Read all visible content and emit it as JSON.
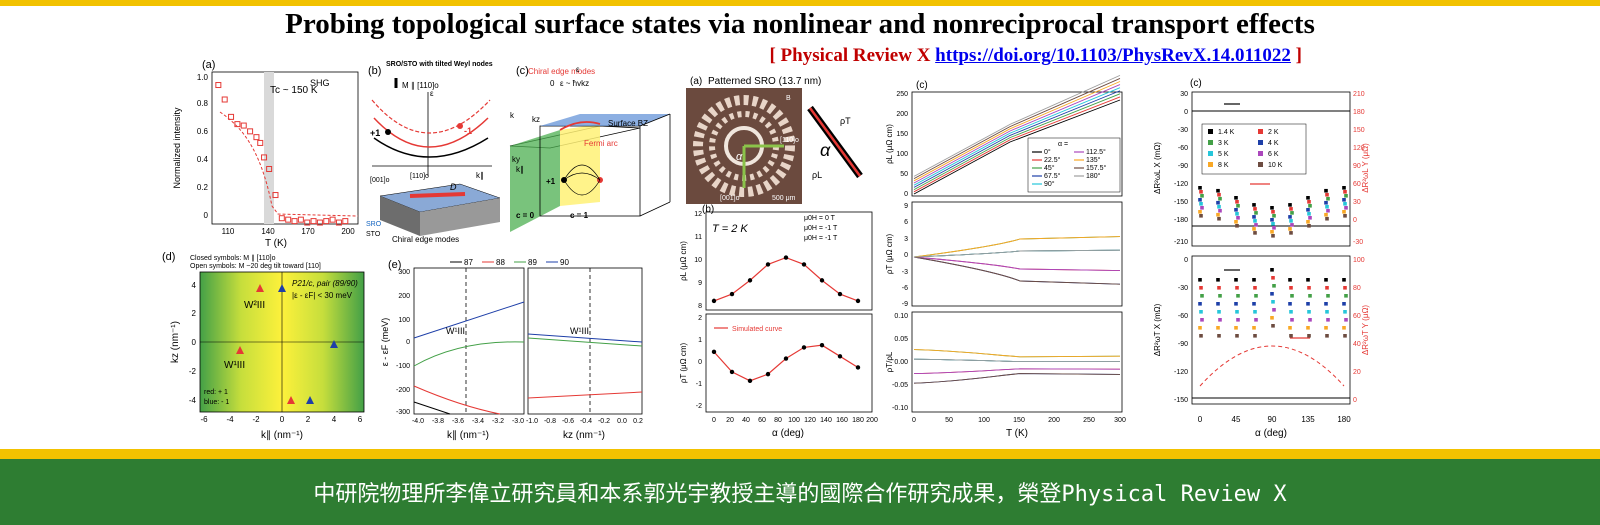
{
  "header": {
    "title": "Probing topological surface states via nonlinear and nonreciprocal transport effects",
    "journal": "[ Physical Review X",
    "doi_link": "https://doi.org/10.1103/PhysRevX.14.011022",
    "close_bracket": "]"
  },
  "footer": {
    "caption": "中研院物理所李偉立研究員和本系郭光宇教授主導的國際合作研究成果，榮登Physical Review X"
  },
  "colors": {
    "accent_yellow": "#f2c200",
    "footer_green": "#2e7d32",
    "citation_red": "#c00000",
    "link_blue": "#0000ee"
  },
  "figure": {
    "panel_a1": {
      "label": "(a)",
      "tag": "SHG",
      "tc": "Tc ~ 150 K",
      "ylabel": "Normalized intensity",
      "xlabel": "T (K)",
      "yticks": [
        "0",
        "0.2",
        "0.4",
        "0.6",
        "0.8",
        "1.0"
      ],
      "xticks": [
        "110",
        "140",
        "170",
        "200"
      ],
      "chart_data": {
        "type": "scatter",
        "xlabel": "T (K)",
        "ylabel": "Normalized intensity",
        "xlim": [
          95,
          210
        ],
        "ylim": [
          0,
          1.05
        ],
        "x": [
          100,
          105,
          110,
          115,
          120,
          125,
          130,
          133,
          136,
          140,
          145,
          150,
          155,
          160,
          165,
          170,
          175,
          180,
          185,
          190,
          195,
          200
        ],
        "y": [
          0.96,
          0.86,
          0.74,
          0.69,
          0.68,
          0.64,
          0.6,
          0.56,
          0.46,
          0.38,
          0.2,
          0.04,
          0.03,
          0.02,
          0.03,
          0.01,
          0.02,
          0.01,
          0.02,
          0.03,
          0.01,
          0.02
        ]
      }
    },
    "panel_b1": {
      "label": "(b)",
      "heading": "SRO/STO with tilted Weyl nodes",
      "m_dir": "M ∥ [110]o",
      "e_label": "ε",
      "k_label": "k∥",
      "plus_one": "+1",
      "minus_one": "-1",
      "dir1": "[001]o",
      "dir2": "[110]o",
      "d_label": "D",
      "sro": "SRO",
      "sto": "STO",
      "edge_modes": "Chiral edge modes"
    },
    "panel_c1": {
      "label": "(c)",
      "title": "Chiral edge modes",
      "dispersion": "ε ~ ħvkz",
      "e_axis": "ε",
      "zero": "0",
      "ky": "ky",
      "kz": "kz",
      "k": "k",
      "kpar": "k∥",
      "surface_bz": "Surface BZ",
      "fermi_arc": "Fermi arc",
      "plus_one": "+1",
      "c0": "c = 0",
      "c1": "c = 1"
    },
    "panel_d1": {
      "label": "(d)",
      "legend1": "Closed symbols: M ∥ [110]o",
      "legend2": "Open symbols: M ~20 deg tilt toward [110]",
      "pair_text": "P21/c, pair (89/90)",
      "window": "|ε - εF| < 30 meV",
      "w2": "W²III",
      "w1": "W¹III",
      "red_label": "red: + 1",
      "blue_label": "blue: - 1",
      "xlabel": "k∥ (nm⁻¹)",
      "ylabel": "kz (nm⁻¹)",
      "xticks": [
        "-6",
        "-4",
        "-2",
        "0",
        "2",
        "4",
        "6"
      ],
      "yticks": [
        "4",
        "2",
        "0",
        "-2",
        "-4"
      ]
    },
    "panel_e1": {
      "label": "(e)",
      "legend": [
        "87",
        "88",
        "89",
        "90"
      ],
      "legend_colors": [
        "#000000",
        "#e53935",
        "#43a047",
        "#1e3fa8"
      ],
      "ylabel": "ε - εF (meV)",
      "xlabel_left": "k∥ (nm⁻¹)",
      "xlabel_right": "kz (nm⁻¹)",
      "yticks": [
        "300",
        "200",
        "100",
        "0",
        "-100",
        "-200",
        "-300"
      ],
      "xticks_left": [
        "-4.0",
        "-3.8",
        "-3.6",
        "-3.4",
        "-3.2",
        "-3.0"
      ],
      "xticks_right": [
        "-1.0",
        "-0.8",
        "-0.6",
        "-0.4",
        "-0.2",
        "0.0",
        "0.2"
      ],
      "w_label": "W¹III"
    },
    "panel_a2": {
      "label": "(a)",
      "title": "Patterned SRO (13.7 nm)",
      "b_label": "B",
      "alpha": "α",
      "dir110": "[110]o",
      "dir001": "[001]o",
      "scale": "500 μm",
      "rho_t": "ρT",
      "rho_l": "ρL"
    },
    "panel_b2": {
      "label": "(b)",
      "temp": "T = 2 K",
      "legend": [
        "μ0H = 0 T",
        "μ0H = -1 T",
        "μ0H = -1 T"
      ],
      "ylabel_top": "ρL (μΩ cm)",
      "ylabel_bottom": "ρT (μΩ cm)",
      "simulated": "Simulated curve",
      "xlabel": "α (deg)",
      "yticks_top": [
        "12",
        "11",
        "10",
        "9",
        "8"
      ],
      "yticks_bottom": [
        "2",
        "1",
        "0",
        "-1",
        "-2"
      ],
      "xticks": [
        "0",
        "20",
        "40",
        "60",
        "80",
        "100",
        "120",
        "140",
        "160",
        "180",
        "200"
      ],
      "chart_data": {
        "type": "line",
        "xlabel": "α (deg)",
        "xlim": [
          -10,
          200
        ],
        "series": [
          {
            "name": "Simulated curve",
            "x": [
              0,
              22.5,
              45,
              67.5,
              90,
              112.5,
              135,
              157.5,
              180
            ],
            "y_top": [
              8.4,
              8.7,
              9.3,
              10.0,
              10.3,
              10.0,
              9.3,
              8.7,
              8.4
            ],
            "y_bottom": [
              0.5,
              -0.4,
              -0.8,
              -0.5,
              0.2,
              0.7,
              0.8,
              0.3,
              -0.2
            ]
          }
        ]
      }
    },
    "panel_c2": {
      "label": "(c)",
      "xlabel": "T (K)",
      "ylabel_top": "ρL (μΩ cm)",
      "ylabel_mid": "ρT (μΩ cm)",
      "ylabel_bot": "ρT/ρL",
      "yticks_top": [
        "250",
        "200",
        "150",
        "100",
        "50",
        "0"
      ],
      "yticks_mid": [
        "9",
        "6",
        "3",
        "0",
        "-3",
        "-6",
        "-9"
      ],
      "yticks_bot": [
        "0.10",
        "0.05",
        "0.00",
        "-0.05",
        "-0.10"
      ],
      "xticks": [
        "0",
        "50",
        "100",
        "150",
        "200",
        "250",
        "300"
      ],
      "legend_title": "α =",
      "legend_items": [
        "0°",
        "22.5°",
        "45°",
        "67.5°",
        "90°",
        "112.5°",
        "135°",
        "157.5°",
        "180°"
      ],
      "legend_colors": [
        "#000000",
        "#e53935",
        "#43a047",
        "#1e3fa8",
        "#26c6da",
        "#ab47bc",
        "#f9a825",
        "#6d4c41",
        "#9e9e9e"
      ]
    },
    "panel_c3": {
      "label": "(c)",
      "xlabel": "α (deg)",
      "ylabel_left_top": "ΔR²ωL X (mΩ)",
      "ylabel_right_top": "ΔR²ωL Y (μΩ)",
      "ylabel_left_bot": "ΔR²ωT X (mΩ)",
      "ylabel_right_bot": "ΔR²ωT Y (μΩ)",
      "yticks_left_top": [
        "30",
        "0",
        "-30",
        "-60",
        "-90",
        "-120",
        "-150",
        "-180",
        "-210"
      ],
      "yticks_right_top": [
        "210",
        "180",
        "150",
        "120",
        "90",
        "60",
        "30",
        "0",
        "-30"
      ],
      "yticks_left_bot": [
        "0",
        "-30",
        "-60",
        "-90",
        "-120",
        "-150"
      ],
      "yticks_right_bot": [
        "100",
        "80",
        "60",
        "40",
        "20",
        "0"
      ],
      "xticks": [
        "0",
        "45",
        "90",
        "135",
        "180"
      ],
      "legend": [
        "1.4 K",
        "2 K",
        "3 K",
        "4 K",
        "5 K",
        "6 K",
        "8 K",
        "10 K"
      ],
      "legend_colors": [
        "#000000",
        "#e53935",
        "#43a047",
        "#1e3fa8",
        "#26c6da",
        "#ab47bc",
        "#f9a825",
        "#6d4c41"
      ]
    }
  }
}
